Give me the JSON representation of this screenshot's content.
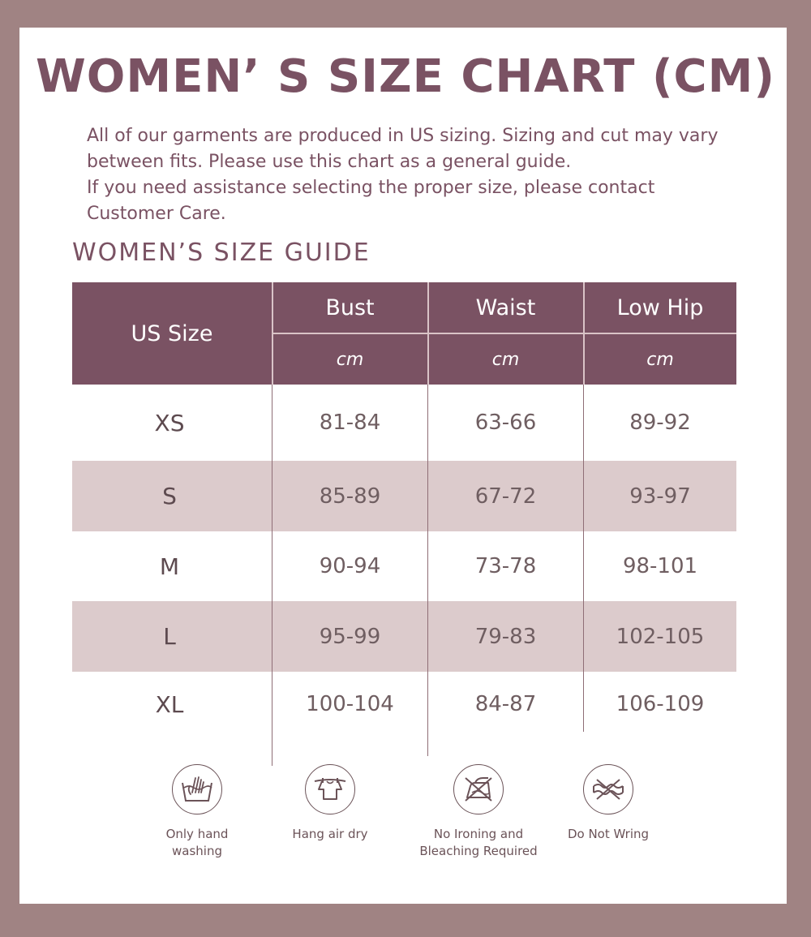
{
  "title": "WOMEN’ S SIZE CHART (CM)",
  "intro": {
    "line1": "All of our garments are produced in US sizing. Sizing and cut may vary between fits. Please use this chart as a general guide.",
    "line2": "If you need assistance selecting the proper size, please contact Customer Care."
  },
  "guide_title": "WOMEN’S SIZE GUIDE",
  "table": {
    "headers": [
      "US Size",
      "Bust",
      "Waist",
      "Low Hip"
    ],
    "units": [
      "cm",
      "cm",
      "cm"
    ],
    "rows": [
      [
        "XS",
        "81-84",
        "63-66",
        "89-92"
      ],
      [
        "S",
        "85-89",
        "67-72",
        "93-97"
      ],
      [
        "M",
        "90-94",
        "73-78",
        "98-101"
      ],
      [
        "L",
        "95-99",
        "79-83",
        "102-105"
      ],
      [
        "XL",
        "100-104",
        "84-87",
        "106-109"
      ]
    ]
  },
  "care": [
    {
      "label": "Only hand\nwashing",
      "icon": "hand-wash-icon"
    },
    {
      "label": "Hang air dry",
      "icon": "hang-dry-icon"
    },
    {
      "label": "No Ironing and\nBleaching Required",
      "icon": "no-iron-icon"
    },
    {
      "label": "Do Not Wring",
      "icon": "no-wring-icon"
    }
  ],
  "colors": {
    "frame": "#a08383",
    "accent": "#7a5263",
    "row_shade": "#dccbcc",
    "text": "#6f5e61"
  }
}
